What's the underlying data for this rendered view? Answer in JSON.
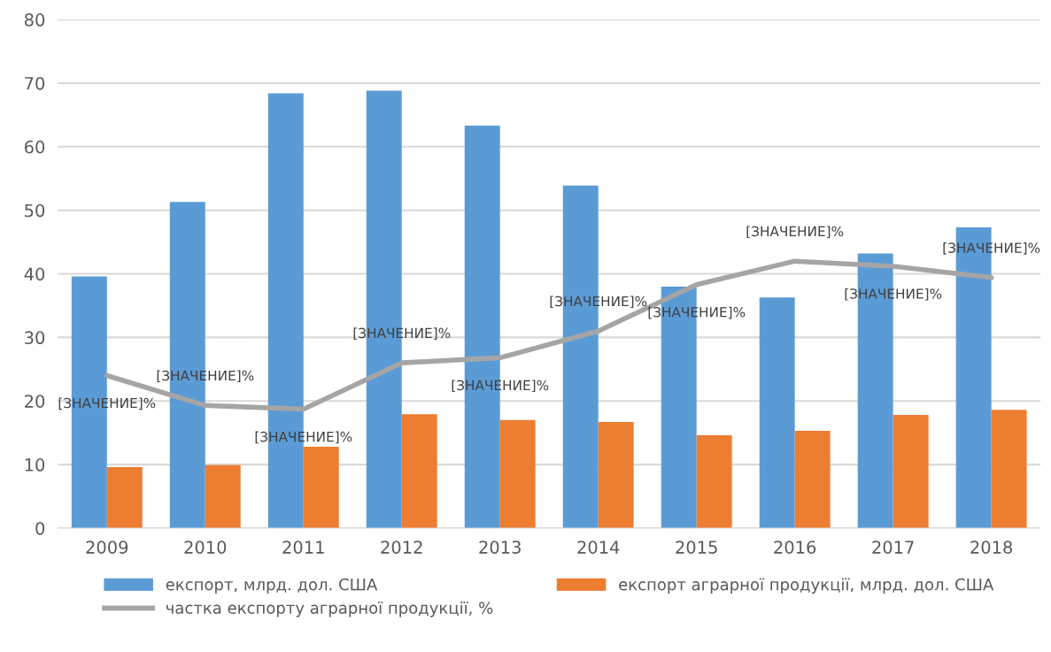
{
  "chart_data": {
    "type": "bar",
    "categories": [
      "2009",
      "2010",
      "2011",
      "2012",
      "2013",
      "2014",
      "2015",
      "2016",
      "2017",
      "2018"
    ],
    "series": [
      {
        "name": "експорт, млрд. дол. США",
        "color": "#5b9bd5",
        "values": [
          39.6,
          51.3,
          68.4,
          68.8,
          63.3,
          53.9,
          38.0,
          36.3,
          43.2,
          47.3
        ]
      },
      {
        "name": "експорт аграрної продукції, млрд. дол. США",
        "color": "#ed7d31",
        "values": [
          9.6,
          9.9,
          12.8,
          17.9,
          17.0,
          16.7,
          14.6,
          15.3,
          17.8,
          18.6
        ]
      },
      {
        "name": "частка експорту аграрної продукції, %",
        "type": "line",
        "color": "#a5a5a5",
        "values": [
          24.0,
          19.3,
          18.7,
          26.0,
          26.8,
          31.0,
          38.3,
          42.0,
          41.2,
          39.4
        ],
        "value_labels": [
          "[ЗНАЧЕНИЕ]%",
          "[ЗНАЧЕНИЕ]%",
          "[ЗНАЧЕНИЕ]%",
          "[ЗНАЧЕНИЕ]%",
          "[ЗНАЧЕНИЕ]%",
          "[ЗНАЧЕНИЕ]%",
          "[ЗНАЧЕНИЕ]%",
          "[ЗНАЧЕНИЕ]%",
          "[ЗНАЧЕНИЕ]%",
          "[ЗНАЧЕНИЕ]%"
        ]
      }
    ],
    "ylim": [
      0,
      80
    ],
    "yticks": [
      0,
      10,
      20,
      30,
      40,
      50,
      60,
      70,
      80
    ],
    "grid": "y",
    "legend": "bottom"
  }
}
